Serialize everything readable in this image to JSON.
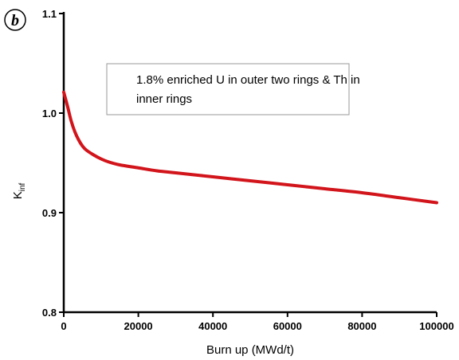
{
  "chart_data": {
    "type": "line",
    "panel_label": "b",
    "xlabel": "Burn up (MWd/t)",
    "ylabel": "K",
    "ylabel_subscript": "inf",
    "xlim": [
      0,
      100000
    ],
    "ylim": [
      0.8,
      1.1
    ],
    "x_ticks": [
      0,
      20000,
      40000,
      60000,
      80000,
      100000
    ],
    "x_tick_labels": [
      "0",
      "20000",
      "40000",
      "60000",
      "80000",
      "100000"
    ],
    "y_ticks": [
      0.8,
      0.9,
      1.0,
      1.1
    ],
    "y_tick_labels": [
      "0.8",
      "0.9",
      "1.0",
      "1.1"
    ],
    "grid": false,
    "legend_position": "top-right",
    "legend_lines": [
      "1.8% enriched U in outer two rings & Th in",
      "inner rings"
    ],
    "series": [
      {
        "color": "#d2141b",
        "x": [
          0,
          1000,
          2000,
          3000,
          4000,
          5000,
          6000,
          8000,
          10000,
          12000,
          15000,
          20000,
          25000,
          30000,
          40000,
          50000,
          60000,
          70000,
          80000,
          90000,
          100000
        ],
        "y": [
          1.021,
          1.007,
          0.992,
          0.981,
          0.973,
          0.967,
          0.963,
          0.958,
          0.954,
          0.951,
          0.948,
          0.945,
          0.942,
          0.94,
          0.936,
          0.932,
          0.928,
          0.924,
          0.92,
          0.915,
          0.91
        ]
      }
    ]
  }
}
